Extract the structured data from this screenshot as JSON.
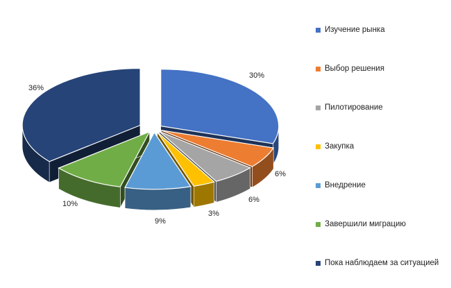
{
  "chart_data": {
    "type": "pie",
    "title": "",
    "categories": [
      "Изучение рынка",
      "Выбор решения",
      "Пилотирование",
      "Закупка",
      "Внедрение",
      "Завершили миграцию",
      "Пока наблюдаем за ситуацией"
    ],
    "values": [
      30,
      6,
      6,
      3,
      9,
      10,
      36
    ],
    "labels": [
      "30%",
      "6%",
      "6%",
      "3%",
      "9%",
      "10%",
      "36%"
    ],
    "colors": [
      "#4472C4",
      "#ED7D31",
      "#A5A5A5",
      "#FFC000",
      "#5B9BD5",
      "#70AD47",
      "#264478"
    ],
    "style": "3d-exploded",
    "legend_position": "right"
  }
}
